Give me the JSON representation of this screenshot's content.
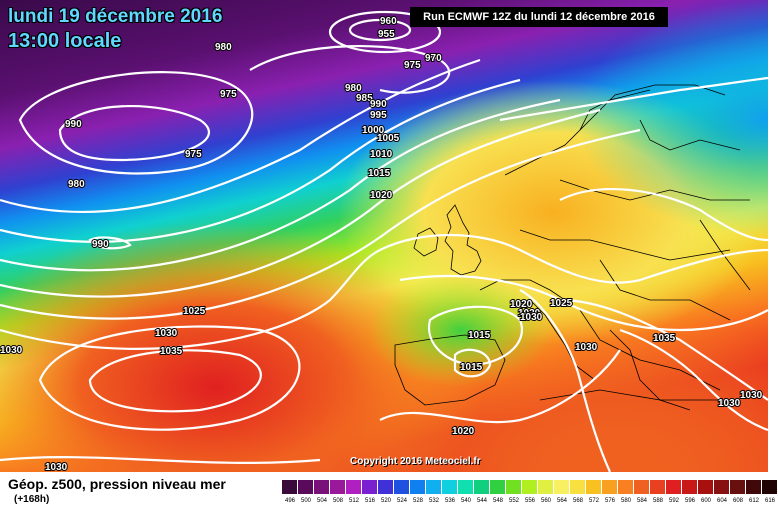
{
  "header": {
    "date": "lundi 19 décembre 2016",
    "time": "13:00 locale",
    "run": "Run ECMWF 12Z du lundi 12 décembre 2016"
  },
  "copyright": "Copyright 2016 Meteociel.fr",
  "legend": {
    "title": "Géop. z500, pression niveau mer",
    "step": "(+168h)",
    "scale": [
      {
        "label": "496",
        "color": "#3a0a3a"
      },
      {
        "label": "500",
        "color": "#5a0a5a"
      },
      {
        "label": "504",
        "color": "#7a107a"
      },
      {
        "label": "508",
        "color": "#9a189a"
      },
      {
        "label": "512",
        "color": "#b020c0"
      },
      {
        "label": "516",
        "color": "#7a20d0"
      },
      {
        "label": "520",
        "color": "#4030d8"
      },
      {
        "label": "524",
        "color": "#2050e0"
      },
      {
        "label": "528",
        "color": "#1080f0"
      },
      {
        "label": "532",
        "color": "#10b0f0"
      },
      {
        "label": "536",
        "color": "#10d0e0"
      },
      {
        "label": "540",
        "color": "#10e0b0"
      },
      {
        "label": "544",
        "color": "#10d080"
      },
      {
        "label": "548",
        "color": "#30d040"
      },
      {
        "label": "552",
        "color": "#70e020"
      },
      {
        "label": "556",
        "color": "#b0f020"
      },
      {
        "label": "560",
        "color": "#e0f040"
      },
      {
        "label": "564",
        "color": "#f8f060"
      },
      {
        "label": "568",
        "color": "#f8e040"
      },
      {
        "label": "572",
        "color": "#f8c020"
      },
      {
        "label": "576",
        "color": "#f8a020"
      },
      {
        "label": "580",
        "color": "#f88020"
      },
      {
        "label": "584",
        "color": "#f06020"
      },
      {
        "label": "588",
        "color": "#e84020"
      },
      {
        "label": "592",
        "color": "#e02020"
      },
      {
        "label": "596",
        "color": "#c81818"
      },
      {
        "label": "600",
        "color": "#a81010"
      },
      {
        "label": "604",
        "color": "#881010"
      },
      {
        "label": "608",
        "color": "#681010"
      },
      {
        "label": "612",
        "color": "#400808"
      },
      {
        "label": "616",
        "color": "#200404"
      }
    ]
  },
  "isobars": [
    "960",
    "955",
    "970",
    "975",
    "980",
    "975",
    "980",
    "985",
    "990",
    "995",
    "1000",
    "1005",
    "1010",
    "1015",
    "1020",
    "990",
    "990",
    "975",
    "980",
    "1025",
    "1030",
    "1035",
    "1030",
    "1030",
    "1015",
    "1015",
    "1020",
    "1025",
    "1020",
    "1030",
    "1035",
    "1030",
    "1020",
    "1030",
    "1030"
  ]
}
